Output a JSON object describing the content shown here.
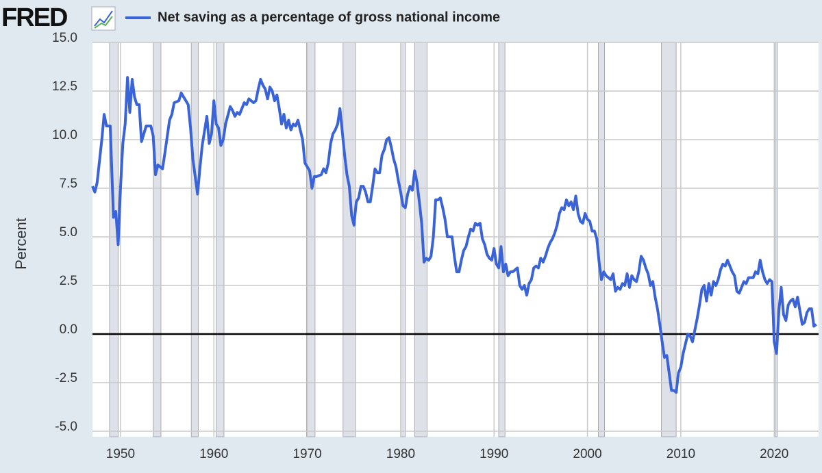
{
  "logo": "FRED",
  "chart_data": {
    "type": "line",
    "series": [
      {
        "name": "Net saving as a percentage of gross national income",
        "color": "#3a63d8",
        "x": [
          1947.0,
          1947.25,
          1947.5,
          1948.0,
          1948.25,
          1948.5,
          1948.9,
          1949.25,
          1949.5,
          1949.75,
          1950.0,
          1950.25,
          1950.5,
          1950.75,
          1951.0,
          1951.25,
          1951.5,
          1951.75,
          1952.0,
          1952.25,
          1952.5,
          1952.75,
          1953.25,
          1953.5,
          1953.75,
          1954.0,
          1954.5,
          1954.75,
          1955.25,
          1955.5,
          1955.75,
          1956.25,
          1956.5,
          1956.75,
          1957.25,
          1957.5,
          1957.75,
          1958.25,
          1958.5,
          1958.75,
          1959.25,
          1959.5,
          1959.75,
          1960.0,
          1960.25,
          1960.5,
          1960.75,
          1961.0,
          1961.25,
          1961.75,
          1962.0,
          1962.25,
          1962.5,
          1962.75,
          1963.25,
          1963.5,
          1963.75,
          1964.25,
          1964.5,
          1964.75,
          1965.0,
          1965.25,
          1965.5,
          1965.75,
          1966.0,
          1966.25,
          1966.5,
          1966.75,
          1967.0,
          1967.25,
          1967.5,
          1967.75,
          1968.0,
          1968.25,
          1968.5,
          1968.75,
          1969.0,
          1969.25,
          1969.5,
          1969.75,
          1970.0,
          1970.25,
          1970.5,
          1970.75,
          1971.0,
          1971.5,
          1971.75,
          1972.0,
          1972.25,
          1972.5,
          1972.75,
          1973.0,
          1973.25,
          1973.5,
          1973.75,
          1974.0,
          1974.25,
          1974.5,
          1974.75,
          1975.0,
          1975.25,
          1975.5,
          1975.75,
          1976.0,
          1976.25,
          1976.5,
          1976.75,
          1977.0,
          1977.25,
          1977.5,
          1977.75,
          1978.0,
          1978.25,
          1978.5,
          1978.75,
          1979.0,
          1979.25,
          1979.5,
          1979.75,
          1980.0,
          1980.25,
          1980.5,
          1980.75,
          1981.0,
          1981.25,
          1981.5,
          1981.75,
          1982.0,
          1982.25,
          1982.5,
          1982.75,
          1983.0,
          1983.25,
          1983.5,
          1983.75,
          1984.0,
          1984.25,
          1984.5,
          1984.75,
          1985.0,
          1985.5,
          1985.75,
          1986.0,
          1986.25,
          1986.5,
          1986.75,
          1987.0,
          1987.25,
          1987.5,
          1987.75,
          1988.0,
          1988.25,
          1988.5,
          1988.75,
          1989.0,
          1989.25,
          1989.5,
          1989.75,
          1990.0,
          1990.25,
          1990.5,
          1990.75,
          1991.0,
          1991.25,
          1991.5,
          1991.75,
          1992.0,
          1992.5,
          1992.75,
          1993.0,
          1993.25,
          1993.5,
          1993.75,
          1994.0,
          1994.25,
          1994.5,
          1994.75,
          1995.0,
          1995.25,
          1995.5,
          1995.75,
          1996.0,
          1996.25,
          1996.5,
          1996.75,
          1997.0,
          1997.25,
          1997.5,
          1997.75,
          1998.0,
          1998.25,
          1998.5,
          1998.75,
          1999.0,
          1999.25,
          1999.5,
          1999.75,
          2000.0,
          2000.25,
          2000.5,
          2000.75,
          2001.0,
          2001.25,
          2001.5,
          2001.75,
          2002.0,
          2002.25,
          2002.5,
          2002.75,
          2003.0,
          2003.25,
          2003.5,
          2003.75,
          2004.0,
          2004.25,
          2004.5,
          2004.75,
          2005.0,
          2005.25,
          2005.5,
          2005.75,
          2006.0,
          2006.25,
          2006.5,
          2006.75,
          2007.0,
          2007.25,
          2007.5,
          2007.75,
          2008.0,
          2008.25,
          2008.5,
          2008.75,
          2009.0,
          2009.25,
          2009.5,
          2009.75,
          2010.0,
          2010.25,
          2010.5,
          2010.75,
          2011.0,
          2011.25,
          2011.5,
          2011.75,
          2012.0,
          2012.25,
          2012.5,
          2012.75,
          2013.0,
          2013.25,
          2013.5,
          2013.75,
          2014.0,
          2014.25,
          2014.5,
          2014.75,
          2015.0,
          2015.25,
          2015.5,
          2015.75,
          2016.0,
          2016.25,
          2016.5,
          2016.75,
          2017.0,
          2017.25,
          2017.75,
          2018.0,
          2018.25,
          2018.5,
          2018.75,
          2019.0,
          2019.25,
          2019.5,
          2019.75,
          2020.0,
          2020.25,
          2020.5,
          2020.75,
          2021.0,
          2021.25,
          2021.5,
          2021.75,
          2022.0,
          2022.25,
          2022.5,
          2022.75,
          2023.0,
          2023.25,
          2023.5,
          2023.75,
          2024.0,
          2024.25,
          2024.5
        ],
        "values": [
          7.6,
          7.3,
          7.8,
          10.0,
          11.3,
          10.7,
          10.7,
          6.0,
          6.3,
          4.6,
          7.5,
          9.8,
          10.8,
          13.2,
          11.4,
          13.1,
          12.2,
          11.8,
          11.8,
          9.9,
          10.3,
          10.7,
          10.7,
          10.2,
          8.2,
          8.7,
          8.5,
          9.3,
          11.0,
          11.3,
          11.9,
          12.0,
          12.4,
          12.2,
          11.8,
          10.6,
          9.0,
          7.2,
          8.5,
          9.7,
          11.2,
          9.8,
          10.3,
          12.0,
          10.8,
          10.6,
          9.7,
          10.0,
          10.8,
          11.7,
          11.5,
          11.2,
          11.4,
          11.3,
          11.9,
          11.8,
          12.1,
          11.9,
          12.0,
          12.6,
          13.1,
          12.8,
          12.6,
          12.1,
          12.7,
          12.5,
          12.0,
          12.3,
          11.6,
          10.8,
          11.3,
          10.6,
          11.0,
          10.5,
          10.8,
          10.7,
          11.0,
          10.5,
          10.0,
          8.8,
          8.6,
          8.4,
          7.5,
          8.1,
          8.1,
          8.2,
          8.5,
          8.3,
          8.8,
          9.8,
          10.3,
          10.5,
          10.8,
          11.6,
          10.4,
          9.2,
          8.2,
          7.6,
          6.1,
          5.6,
          6.8,
          7.0,
          7.6,
          7.6,
          7.3,
          6.8,
          6.8,
          7.6,
          8.5,
          8.3,
          8.3,
          9.2,
          9.5,
          10.0,
          10.1,
          9.6,
          9.0,
          8.6,
          7.9,
          7.3,
          6.6,
          6.5,
          7.2,
          7.6,
          7.4,
          8.4,
          7.8,
          6.8,
          5.7,
          3.7,
          3.9,
          3.8,
          4.0,
          5.0,
          6.9,
          6.9,
          7.0,
          6.5,
          5.9,
          5.0,
          5.0,
          4.0,
          3.2,
          3.2,
          3.8,
          4.3,
          4.5,
          5.0,
          5.4,
          5.3,
          5.7,
          5.6,
          5.7,
          4.9,
          4.6,
          4.1,
          3.9,
          3.8,
          4.4,
          3.6,
          3.4,
          4.5,
          3.2,
          3.6,
          3.0,
          3.2,
          3.2,
          3.4,
          2.5,
          2.3,
          2.5,
          2.0,
          2.6,
          2.8,
          3.4,
          3.5,
          3.4,
          3.9,
          3.7,
          4.0,
          4.4,
          4.7,
          4.9,
          5.2,
          5.6,
          6.2,
          6.5,
          6.4,
          6.9,
          6.6,
          6.8,
          6.4,
          7.1,
          6.2,
          5.8,
          5.7,
          6.2,
          5.9,
          5.8,
          5.3,
          5.3,
          4.9,
          3.7,
          2.8,
          3.2,
          3.0,
          2.9,
          2.8,
          3.1,
          2.2,
          2.4,
          2.3,
          2.6,
          2.5,
          3.1,
          2.4,
          3.0,
          2.8,
          2.7,
          3.2,
          4.0,
          3.8,
          3.4,
          3.1,
          2.5,
          2.7,
          1.9,
          1.3,
          0.5,
          -0.4,
          -1.2,
          -1.1,
          -2.0,
          -2.9,
          -2.9,
          -3.0,
          -2.0,
          -1.7,
          -1.0,
          -0.5,
          0.0,
          -0.1,
          -0.4,
          0.2,
          0.8,
          1.5,
          2.3,
          2.5,
          1.7,
          2.6,
          2.0,
          2.7,
          2.5,
          2.8,
          3.3,
          3.6,
          3.5,
          3.8,
          3.5,
          3.2,
          3.0,
          2.2,
          2.1,
          2.4,
          2.7,
          2.6,
          2.9,
          2.9,
          3.2,
          3.1,
          3.8,
          3.2,
          2.8,
          2.6,
          2.8,
          2.7,
          -0.4,
          -1.0,
          1.2,
          2.4,
          1.0,
          0.7,
          1.5,
          1.7,
          1.8,
          1.4,
          1.9,
          1.2,
          0.5,
          0.6,
          1.1,
          1.3,
          1.3,
          0.4,
          0.5
        ]
      }
    ],
    "recessions": [
      [
        1948.83,
        1949.75
      ],
      [
        1953.5,
        1954.33
      ],
      [
        1957.58,
        1958.33
      ],
      [
        1960.25,
        1961.08
      ],
      [
        1969.92,
        1970.83
      ],
      [
        1973.83,
        1975.17
      ],
      [
        1980.0,
        1980.5
      ],
      [
        1981.5,
        1982.83
      ],
      [
        1990.5,
        1991.17
      ],
      [
        2001.17,
        2001.83
      ],
      [
        2007.92,
        2009.5
      ],
      [
        2020.08,
        2020.33
      ]
    ],
    "ylabel": "Percent",
    "xlim": [
      1947,
      2024.75
    ],
    "xticks": [
      1950,
      1960,
      1970,
      1980,
      1990,
      2000,
      2010,
      2020
    ],
    "ylim": [
      -5,
      15
    ],
    "yticks": [
      {
        "value": -5,
        "label": "-5.0"
      },
      {
        "value": -2.5,
        "label": "-2.5"
      },
      {
        "value": 0,
        "label": "0.0"
      },
      {
        "value": 2.5,
        "label": "2.5"
      },
      {
        "value": 5,
        "label": "5.0"
      },
      {
        "value": 7.5,
        "label": "7.5"
      },
      {
        "value": 10,
        "label": "10.0"
      },
      {
        "value": 12.5,
        "label": "12.5"
      },
      {
        "value": 15,
        "label": "15.0"
      }
    ],
    "grid": true
  }
}
